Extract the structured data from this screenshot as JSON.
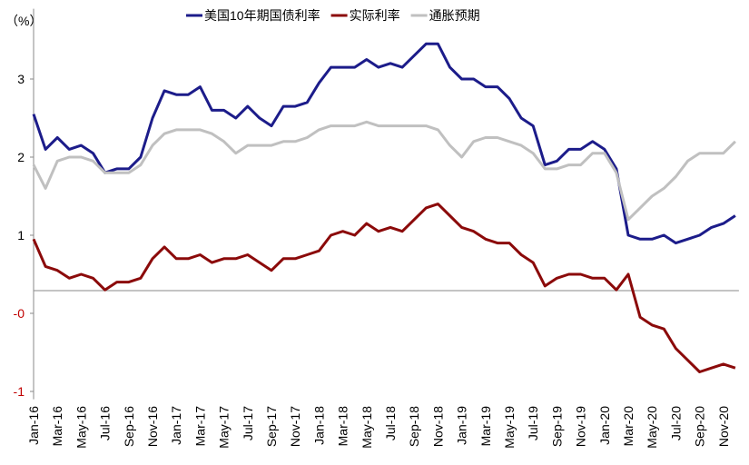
{
  "chart_data": {
    "type": "line",
    "y_label": "（%）",
    "categories": [
      "Jan-16",
      null,
      "Mar-16",
      null,
      "May-16",
      null,
      "Jul-16",
      null,
      "Sep-16",
      null,
      "Nov-16",
      null,
      "Jan-17",
      null,
      "Mar-17",
      null,
      "May-17",
      null,
      "Jul-17",
      null,
      "Sep-17",
      null,
      "Nov-17",
      null,
      "Jan-18",
      null,
      "Mar-18",
      null,
      "May-18",
      null,
      "Jul-18",
      null,
      "Sep-18",
      null,
      "Nov-18",
      null,
      "Jan-19",
      null,
      "Mar-19",
      null,
      "May-19",
      null,
      "Jul-19",
      null,
      "Sep-19",
      null,
      "Nov-19",
      null,
      "Jan-20",
      null,
      "Mar-20",
      null,
      "May-20",
      null,
      "Jul-20",
      null,
      "Sep-20",
      null,
      "Nov-20",
      null
    ],
    "series": [
      {
        "name": "美国10年期国债利率",
        "color": "#1c1c8a",
        "values": [
          2.55,
          2.1,
          2.25,
          2.1,
          2.15,
          2.05,
          1.8,
          1.85,
          1.85,
          2.0,
          2.5,
          2.85,
          2.8,
          2.8,
          2.9,
          2.6,
          2.6,
          2.5,
          2.65,
          2.5,
          2.4,
          2.65,
          2.65,
          2.7,
          2.95,
          3.15,
          3.15,
          3.15,
          3.25,
          3.15,
          3.2,
          3.15,
          3.3,
          3.45,
          3.45,
          3.15,
          3.0,
          3.0,
          2.9,
          2.9,
          2.75,
          2.5,
          2.4,
          1.9,
          1.95,
          2.1,
          2.1,
          2.2,
          2.1,
          1.85,
          1.0,
          0.95,
          0.95,
          1.0,
          0.9,
          0.95,
          1.0,
          1.1,
          1.15,
          1.25
        ]
      },
      {
        "name": "实际利率",
        "color": "#8b0a0a",
        "values": [
          0.95,
          0.6,
          0.55,
          0.45,
          0.5,
          0.45,
          0.3,
          0.4,
          0.4,
          0.45,
          0.7,
          0.85,
          0.7,
          0.7,
          0.75,
          0.65,
          0.7,
          0.7,
          0.75,
          0.65,
          0.55,
          0.7,
          0.7,
          0.75,
          0.8,
          1.0,
          1.05,
          1.0,
          1.15,
          1.05,
          1.1,
          1.05,
          1.2,
          1.35,
          1.4,
          1.25,
          1.1,
          1.05,
          0.95,
          0.9,
          0.9,
          0.75,
          0.65,
          0.35,
          0.45,
          0.5,
          0.5,
          0.45,
          0.45,
          0.3,
          0.5,
          -0.05,
          -0.15,
          -0.2,
          -0.45,
          -0.6,
          -0.75,
          -0.7,
          -0.65,
          -0.7
        ]
      },
      {
        "name": "通胀预期",
        "color": "#c0c0c0",
        "values": [
          1.9,
          1.6,
          1.95,
          2.0,
          2.0,
          1.95,
          1.8,
          1.8,
          1.8,
          1.9,
          2.15,
          2.3,
          2.35,
          2.35,
          2.35,
          2.3,
          2.2,
          2.05,
          2.15,
          2.15,
          2.15,
          2.2,
          2.2,
          2.25,
          2.35,
          2.4,
          2.4,
          2.4,
          2.45,
          2.4,
          2.4,
          2.4,
          2.4,
          2.4,
          2.35,
          2.15,
          2.0,
          2.2,
          2.25,
          2.25,
          2.2,
          2.15,
          2.05,
          1.85,
          1.85,
          1.9,
          1.9,
          2.05,
          2.05,
          1.8,
          1.2,
          1.35,
          1.5,
          1.6,
          1.75,
          1.95,
          2.05,
          2.05,
          2.05,
          2.2
        ]
      }
    ],
    "ylim": [
      -1.1,
      3.9
    ],
    "yticks": [
      3,
      2,
      1,
      {
        "value": 0,
        "label": "-0"
      },
      -1
    ],
    "negative_tick_color": "#c00000",
    "x_axis_crosses": 0.29,
    "legend": "top"
  }
}
